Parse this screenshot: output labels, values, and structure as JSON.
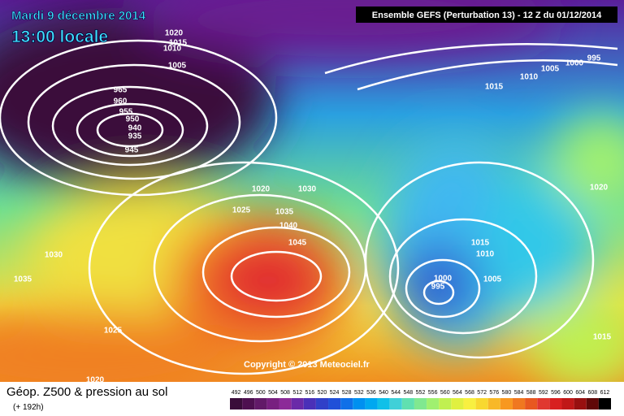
{
  "header": {
    "date": "Mardi 9 décembre 2014",
    "time": "13:00 locale",
    "model": "Ensemble GEFS (Perturbation 13)  -  12 Z du 01/12/2014"
  },
  "copyright": "Copyright © 2013 Meteociel.fr",
  "footer": {
    "title": "Géop. Z500 & pression au sol",
    "range": "(+ 192h)"
  },
  "legend": {
    "values": [
      492,
      496,
      500,
      504,
      508,
      512,
      516,
      520,
      524,
      528,
      532,
      536,
      540,
      544,
      548,
      552,
      556,
      560,
      564,
      568,
      572,
      576,
      580,
      584,
      588,
      592,
      596,
      600,
      604,
      608,
      612
    ],
    "colors": [
      "#3a0d3a",
      "#4e1050",
      "#621a68",
      "#782080",
      "#8c2a98",
      "#6a2aa8",
      "#4a30b8",
      "#3040c8",
      "#2050d8",
      "#1070e8",
      "#0090f0",
      "#00a8f0",
      "#10c0e8",
      "#40d0d8",
      "#60e0b0",
      "#80e890",
      "#a0f070",
      "#c0f050",
      "#e0f040",
      "#f8f040",
      "#f8d830",
      "#f8b828",
      "#f89820",
      "#f07820",
      "#e85820",
      "#e03830",
      "#d82020",
      "#c01818",
      "#981010",
      "#600808",
      "#000000"
    ]
  },
  "isobar_labels": [
    "1020",
    "1015",
    "1010",
    "1005",
    "965",
    "960",
    "955",
    "950",
    "940",
    "935",
    "945",
    "1020",
    "1030",
    "1025",
    "1035",
    "1040",
    "1045",
    "1030",
    "1035",
    "1025",
    "1020",
    "1015",
    "1010",
    "1005",
    "1000",
    "995",
    "1020",
    "1015",
    "1010",
    "1005",
    "1000",
    "995",
    "1015"
  ]
}
